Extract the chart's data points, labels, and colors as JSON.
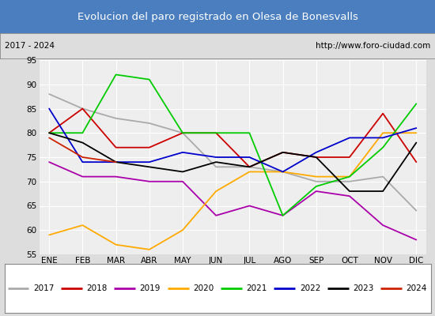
{
  "title": "Evolucion del paro registrado en Olesa de Bonesvalls",
  "subtitle_left": "2017 - 2024",
  "subtitle_right": "http://www.foro-ciudad.com",
  "title_bg": "#4a7ebf",
  "title_color": "white",
  "months": [
    "ENE",
    "FEB",
    "MAR",
    "ABR",
    "MAY",
    "JUN",
    "JUL",
    "AGO",
    "SEP",
    "OCT",
    "NOV",
    "DIC"
  ],
  "ylim": [
    55,
    95
  ],
  "yticks": [
    55,
    60,
    65,
    70,
    75,
    80,
    85,
    90,
    95
  ],
  "series": {
    "2017": {
      "color": "#aaaaaa",
      "data": [
        88,
        85,
        83,
        82,
        80,
        73,
        73,
        72,
        70,
        70,
        71,
        64
      ]
    },
    "2018": {
      "color": "#cc0000",
      "data": [
        80,
        85,
        77,
        77,
        80,
        80,
        73,
        76,
        75,
        75,
        84,
        74
      ]
    },
    "2019": {
      "color": "#aa00aa",
      "data": [
        74,
        71,
        71,
        70,
        70,
        63,
        65,
        63,
        68,
        67,
        61,
        58
      ]
    },
    "2020": {
      "color": "#ffaa00",
      "data": [
        59,
        61,
        57,
        56,
        60,
        68,
        72,
        72,
        71,
        71,
        80,
        80
      ]
    },
    "2021": {
      "color": "#00cc00",
      "data": [
        80,
        80,
        92,
        91,
        80,
        80,
        80,
        63,
        69,
        71,
        77,
        86
      ]
    },
    "2022": {
      "color": "#0000cc",
      "data": [
        85,
        74,
        74,
        74,
        76,
        75,
        75,
        72,
        76,
        79,
        79,
        81
      ]
    },
    "2023": {
      "color": "#000000",
      "data": [
        80,
        78,
        74,
        73,
        72,
        74,
        73,
        76,
        75,
        68,
        68,
        78
      ]
    },
    "2024": {
      "color": "#cc2200",
      "data": [
        79,
        75,
        74,
        null,
        null,
        null,
        null,
        null,
        null,
        null,
        null,
        null
      ]
    }
  },
  "legend_order": [
    "2017",
    "2018",
    "2019",
    "2020",
    "2021",
    "2022",
    "2023",
    "2024"
  ],
  "bg_color": "#dddddd",
  "plot_bg": "#eeeeee",
  "grid_color": "white"
}
